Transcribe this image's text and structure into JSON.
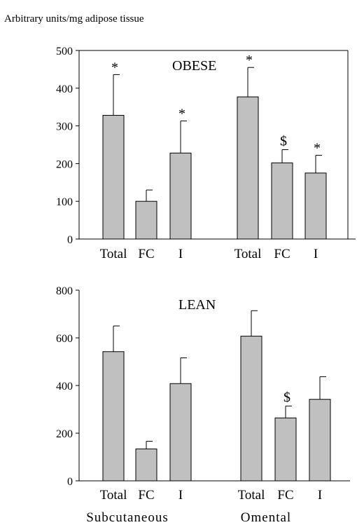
{
  "figure": {
    "ylabel": "Arbitrary units/mg adipose tissue",
    "group_labels": [
      "Subcutaneous",
      "Omental"
    ]
  },
  "chart_data": [
    {
      "type": "bar",
      "title": "OBESE",
      "categories": [
        "Total",
        "FC",
        "I",
        "Total",
        "FC",
        "I"
      ],
      "groups": [
        "Subcutaneous",
        "Omental"
      ],
      "values": [
        328,
        100,
        228,
        377,
        202,
        175
      ],
      "errors": [
        108,
        30,
        85,
        78,
        35,
        47
      ],
      "annotations": [
        "*",
        "",
        "*",
        "*",
        "$",
        "*"
      ],
      "ylabel": "Arbitrary units/mg adipose tissue",
      "ylim": [
        0,
        500
      ],
      "yticks": [
        0,
        100,
        200,
        300,
        400,
        500
      ],
      "bar_color": "#c0c0c0",
      "grid": false
    },
    {
      "type": "bar",
      "title": "LEAN",
      "categories": [
        "Total",
        "FC",
        "I",
        "Total",
        "FC",
        "I"
      ],
      "groups": [
        "Subcutaneous",
        "Omental"
      ],
      "values": [
        542,
        134,
        408,
        607,
        264,
        342
      ],
      "errors": [
        108,
        32,
        108,
        107,
        50,
        95
      ],
      "annotations": [
        "",
        "",
        "",
        "",
        "$",
        ""
      ],
      "ylim": [
        0,
        800
      ],
      "yticks": [
        0,
        200,
        400,
        600,
        800
      ],
      "bar_color": "#c0c0c0",
      "grid": false
    }
  ]
}
